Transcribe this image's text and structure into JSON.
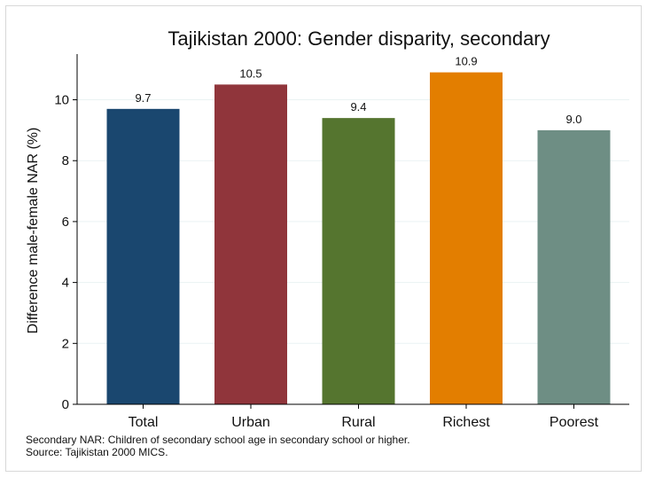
{
  "chart_data": {
    "type": "bar",
    "title": "Tajikistan 2000: Gender disparity, secondary",
    "ylabel": "Difference male-female NAR (%)",
    "xlabel": "",
    "ylim": [
      0,
      11.5
    ],
    "yticks": [
      0,
      2,
      4,
      6,
      8,
      10
    ],
    "grid": true,
    "categories": [
      "Total",
      "Urban",
      "Rural",
      "Richest",
      "Poorest"
    ],
    "values": [
      9.7,
      10.5,
      9.4,
      10.9,
      9.0
    ],
    "value_labels": [
      "9.7",
      "10.5",
      "9.4",
      "10.9",
      "9.0"
    ],
    "colors": [
      "#1a476f",
      "#90353b",
      "#55752f",
      "#e37e00",
      "#6e8e84"
    ]
  },
  "notes": {
    "line1": "Secondary NAR: Children of secondary school age in secondary school or higher.",
    "line2": "Source: Tajikistan 2000 MICS."
  }
}
